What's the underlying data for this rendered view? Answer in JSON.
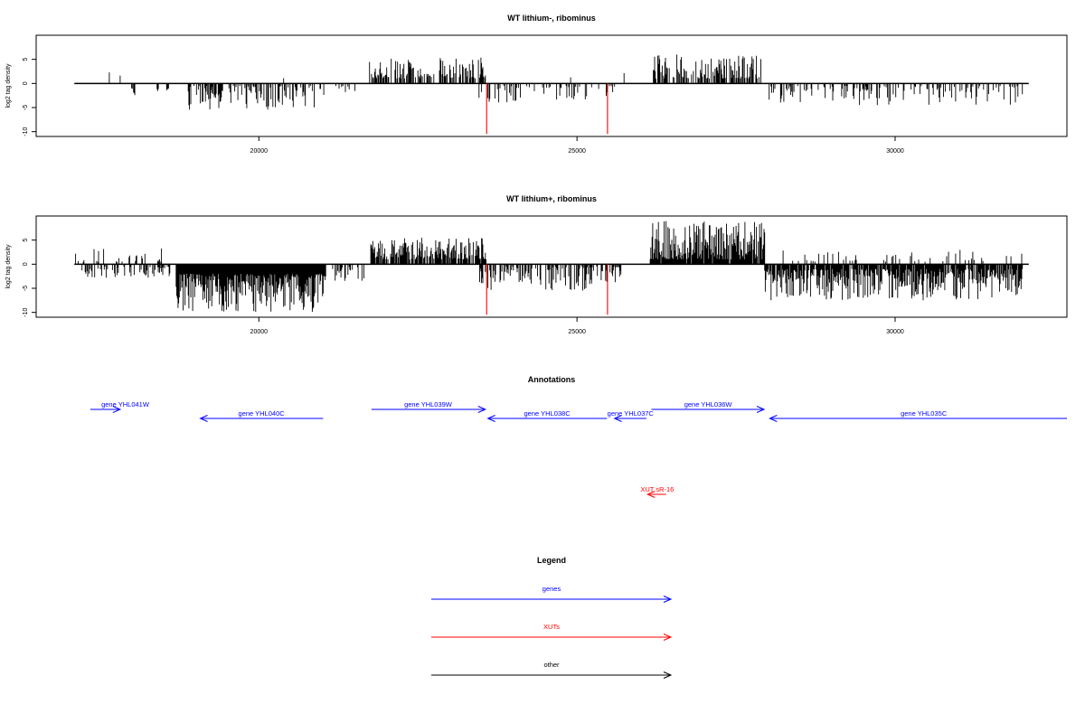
{
  "colors": {
    "gene": "#0000ff",
    "xut": "#ff0000",
    "other": "#000000",
    "marker": "#ff0000",
    "bar": "#000000"
  },
  "chart_data": [
    {
      "type": "bar",
      "title": "WT lithium-, ribominus",
      "ylabel": "log2 tag density",
      "xlim": [
        16500,
        32700
      ],
      "ylim": [
        -11,
        10
      ],
      "xticks": [
        20000,
        25000,
        30000
      ],
      "yticks": [
        -10,
        -5,
        0,
        5
      ],
      "grid": false,
      "baseline": {
        "from": 17100,
        "to": 32100
      },
      "markers": [
        {
          "x": 23580,
          "y": -10.5
        },
        {
          "x": 25480,
          "y": -10.5
        }
      ],
      "positive_segments": [
        {
          "from": 17650,
          "to": 17650,
          "min": 1,
          "max": 3,
          "density": 1,
          "step": 10
        },
        {
          "from": 17820,
          "to": 17820,
          "min": 1,
          "max": 3,
          "density": 1,
          "step": 10
        },
        {
          "from": 20390,
          "to": 20390,
          "min": 1,
          "max": 2,
          "density": 1,
          "step": 10
        },
        {
          "from": 21740,
          "to": 23570,
          "min": 1,
          "max": 5.5,
          "density": 0.6,
          "step": 10
        },
        {
          "from": 24900,
          "to": 24900,
          "min": 1,
          "max": 1.5,
          "density": 1,
          "step": 10
        },
        {
          "from": 25740,
          "to": 25740,
          "min": 2,
          "max": 3,
          "density": 1,
          "step": 10
        },
        {
          "from": 26200,
          "to": 27900,
          "min": 1,
          "max": 6,
          "density": 0.6,
          "step": 10
        }
      ],
      "negative_segments": [
        {
          "from": 18000,
          "to": 18050,
          "min": 1,
          "max": 3,
          "density": 0.8,
          "step": 10
        },
        {
          "from": 18400,
          "to": 18420,
          "min": 1,
          "max": 3,
          "density": 0.8,
          "step": 10
        },
        {
          "from": 18550,
          "to": 18580,
          "min": 1,
          "max": 2,
          "density": 0.8,
          "step": 10
        },
        {
          "from": 18850,
          "to": 21020,
          "min": 0.5,
          "max": 5.5,
          "density": 0.45,
          "step": 10
        },
        {
          "from": 21200,
          "to": 21560,
          "min": 0.5,
          "max": 2,
          "density": 0.2,
          "step": 10
        },
        {
          "from": 23460,
          "to": 25600,
          "min": 0.5,
          "max": 4,
          "density": 0.2,
          "step": 10
        },
        {
          "from": 28000,
          "to": 32000,
          "min": 0.5,
          "max": 4.5,
          "density": 0.3,
          "step": 10
        }
      ]
    },
    {
      "type": "bar",
      "title": "WT lithium+, ribominus",
      "ylabel": "log2 tag density",
      "xlim": [
        16500,
        32700
      ],
      "ylim": [
        -11,
        10
      ],
      "xticks": [
        20000,
        25000,
        30000
      ],
      "yticks": [
        -10,
        -5,
        0,
        5
      ],
      "grid": false,
      "baseline": {
        "from": 17100,
        "to": 32100
      },
      "markers": [
        {
          "x": 23580,
          "y": -10.5
        },
        {
          "x": 25480,
          "y": -10.5
        }
      ],
      "positive_segments": [
        {
          "from": 17100,
          "to": 18500,
          "min": 0.5,
          "max": 3.5,
          "density": 0.25,
          "step": 10
        },
        {
          "from": 21740,
          "to": 23570,
          "min": 1,
          "max": 5.5,
          "density": 0.75,
          "step": 10
        },
        {
          "from": 26150,
          "to": 27950,
          "min": 1,
          "max": 9,
          "density": 0.95,
          "step": 10
        },
        {
          "from": 28100,
          "to": 32000,
          "min": 0.5,
          "max": 3,
          "density": 0.12,
          "step": 10
        }
      ],
      "negative_segments": [
        {
          "from": 17100,
          "to": 18700,
          "min": 0.5,
          "max": 3,
          "density": 0.3,
          "step": 10
        },
        {
          "from": 18700,
          "to": 21050,
          "min": 2,
          "max": 10,
          "density": 1,
          "step": 10
        },
        {
          "from": 21150,
          "to": 21650,
          "min": 0.5,
          "max": 3.5,
          "density": 0.3,
          "step": 10
        },
        {
          "from": 23450,
          "to": 25700,
          "min": 0.5,
          "max": 5.5,
          "density": 0.5,
          "step": 10
        },
        {
          "from": 27950,
          "to": 32000,
          "min": 1,
          "max": 7.5,
          "density": 0.85,
          "step": 10
        }
      ]
    }
  ],
  "annotations": {
    "title": "Annotations",
    "xlim": [
      16500,
      32700
    ],
    "features": [
      {
        "label": "gene YHL041W",
        "type": "gene",
        "strand": "+",
        "start": 17350,
        "end": 17820,
        "row": 0,
        "label_x": 17900
      },
      {
        "label": "gene YHL040C",
        "type": "gene",
        "strand": "-",
        "start": 19080,
        "end": 21010,
        "row": 1,
        "label_x": 20040
      },
      {
        "label": "gene YHL039W",
        "type": "gene",
        "strand": "+",
        "start": 21770,
        "end": 23560,
        "row": 0,
        "label_x": 22660
      },
      {
        "label": "gene YHL038C",
        "type": "gene",
        "strand": "-",
        "start": 23600,
        "end": 25470,
        "row": 1,
        "label_x": 24530
      },
      {
        "label": "gene YHL037C",
        "type": "gene",
        "strand": "-",
        "start": 25590,
        "end": 26090,
        "row": 1,
        "label_x": 25840
      },
      {
        "label": "gene YHL036W",
        "type": "gene",
        "strand": "+",
        "start": 26170,
        "end": 27940,
        "row": 0,
        "label_x": 27060
      },
      {
        "label": "gene YHL035C",
        "type": "gene",
        "strand": "-",
        "start": 28030,
        "end": 32700,
        "row": 1,
        "label_x": 30450
      },
      {
        "label": "XUT sR-16",
        "type": "xut",
        "strand": "-",
        "start": 26110,
        "end": 26400,
        "row": 2,
        "label_x": 26260
      }
    ]
  },
  "legend": {
    "title": "Legend",
    "items": [
      {
        "label": "genes",
        "type": "gene"
      },
      {
        "label": "XUTs",
        "type": "xut"
      },
      {
        "label": "other",
        "type": "other"
      }
    ]
  }
}
